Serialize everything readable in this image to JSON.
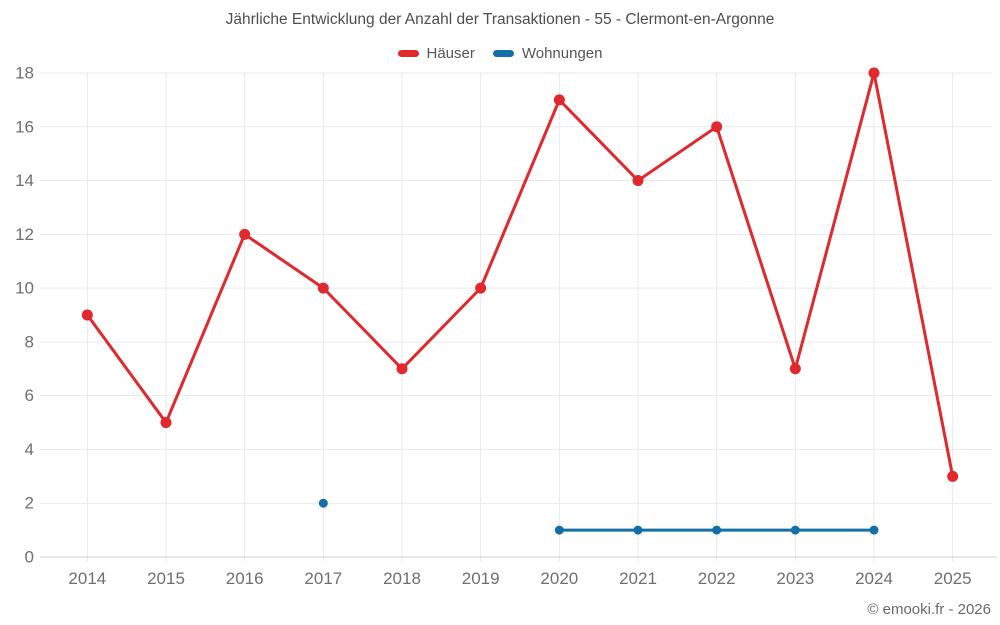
{
  "chart_data": {
    "type": "line",
    "title": "Jährliche Entwicklung der Anzahl der Transaktionen - 55 - Clermont-en-Argonne",
    "categories": [
      "2014",
      "2015",
      "2016",
      "2017",
      "2018",
      "2019",
      "2020",
      "2021",
      "2022",
      "2023",
      "2024",
      "2025"
    ],
    "series": [
      {
        "name": "Häuser",
        "color": "#e1282d",
        "values": [
          9,
          5,
          12,
          10,
          7,
          10,
          17,
          14,
          16,
          7,
          18,
          3
        ]
      },
      {
        "name": "Wohnungen",
        "color": "#1270a6",
        "values": [
          null,
          null,
          null,
          2,
          null,
          null,
          1,
          1,
          1,
          1,
          1,
          null
        ]
      }
    ],
    "xlabel": "",
    "ylabel": "",
    "ylim": [
      0,
      18
    ],
    "ytick_step": 2,
    "grid": true,
    "legend_position": "top"
  },
  "footer": {
    "copyright": "© emooki.fr - 2026"
  },
  "colors": {
    "grid_line": "#e9e9e9",
    "axis_line": "#d0d0d0",
    "tick_label": "#6f6f6f",
    "title_text": "#4e4e4e",
    "background": "#ffffff"
  }
}
